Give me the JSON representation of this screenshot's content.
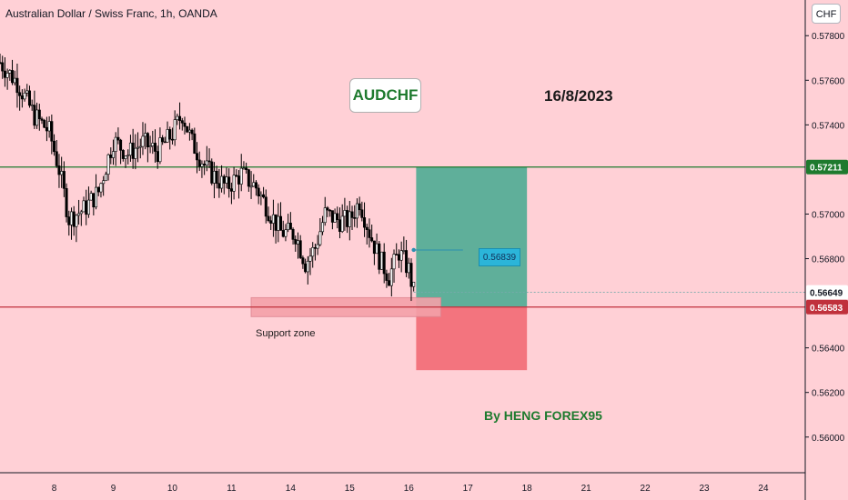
{
  "header": {
    "title": "Australian Dollar / Swiss Franc, 1h, OANDA",
    "currency": "CHF"
  },
  "annotations": {
    "symbol_label": "AUDCHF",
    "date_label": "16/8/2023",
    "author_label": "By HENG FOREX95",
    "support_label": "Support zone",
    "entry_label": "0.56839"
  },
  "colors": {
    "background": "#ffd0d6",
    "bull": "#000000",
    "bear": "#000000",
    "target": "#5faf9a",
    "stop": "#f3747e",
    "resistance_line": "#1e7a2e",
    "support_line": "#c0313c"
  },
  "chart_data": {
    "type": "candlestick",
    "title": "Australian Dollar / Swiss Franc, 1h, OANDA",
    "x_ticks": [
      {
        "label": "8",
        "pos": 0
      },
      {
        "label": "9",
        "pos": 24
      },
      {
        "label": "10",
        "pos": 48
      },
      {
        "label": "11",
        "pos": 72
      },
      {
        "label": "14",
        "pos": 96
      },
      {
        "label": "15",
        "pos": 120
      },
      {
        "label": "16",
        "pos": 144
      },
      {
        "label": "17",
        "pos": 168
      },
      {
        "label": "18",
        "pos": 192
      },
      {
        "label": "21",
        "pos": 216
      },
      {
        "label": "22",
        "pos": 240
      },
      {
        "label": "23",
        "pos": 264
      },
      {
        "label": "24",
        "pos": 288
      }
    ],
    "y_ticks": [
      "0.57800",
      "0.57600",
      "0.57400",
      "0.57000",
      "0.56800",
      "0.56400",
      "0.56200",
      "0.56000"
    ],
    "ylim": [
      0.5584,
      0.5796
    ],
    "xlim": [
      -22,
      305
    ],
    "levels": {
      "resistance": 0.57211,
      "current": 0.56649,
      "support": 0.56583,
      "entry": 0.56839
    },
    "level_labels": {
      "resistance": "0.57211",
      "current": "0.56649",
      "support": "0.56583"
    },
    "position": {
      "x_start": 147,
      "x_end": 192,
      "target": 0.57211,
      "entry": 0.56583,
      "stop": 0.563
    },
    "support_zone": {
      "x_start": 80,
      "x_end": 157,
      "top": 0.56625,
      "bottom": 0.5654
    },
    "anchors": [
      [
        -22,
        0.5768
      ],
      [
        -15,
        0.5759
      ],
      [
        -8,
        0.5744
      ],
      [
        -2,
        0.5737
      ],
      [
        2,
        0.572
      ],
      [
        6,
        0.5698
      ],
      [
        12,
        0.5702
      ],
      [
        18,
        0.571
      ],
      [
        24,
        0.5733
      ],
      [
        30,
        0.5727
      ],
      [
        36,
        0.5732
      ],
      [
        42,
        0.5728
      ],
      [
        48,
        0.5736
      ],
      [
        52,
        0.5745
      ],
      [
        56,
        0.5732
      ],
      [
        62,
        0.572
      ],
      [
        66,
        0.5716
      ],
      [
        70,
        0.5712
      ],
      [
        76,
        0.5718
      ],
      [
        82,
        0.5712
      ],
      [
        88,
        0.57
      ],
      [
        92,
        0.5692
      ],
      [
        98,
        0.5691
      ],
      [
        102,
        0.5678
      ],
      [
        106,
        0.5685
      ],
      [
        110,
        0.57
      ],
      [
        116,
        0.5697
      ],
      [
        120,
        0.5697
      ],
      [
        124,
        0.5706
      ],
      [
        128,
        0.5692
      ],
      [
        132,
        0.568
      ],
      [
        136,
        0.5672
      ],
      [
        140,
        0.5683
      ],
      [
        144,
        0.5675
      ],
      [
        146,
        0.5665
      ]
    ]
  }
}
